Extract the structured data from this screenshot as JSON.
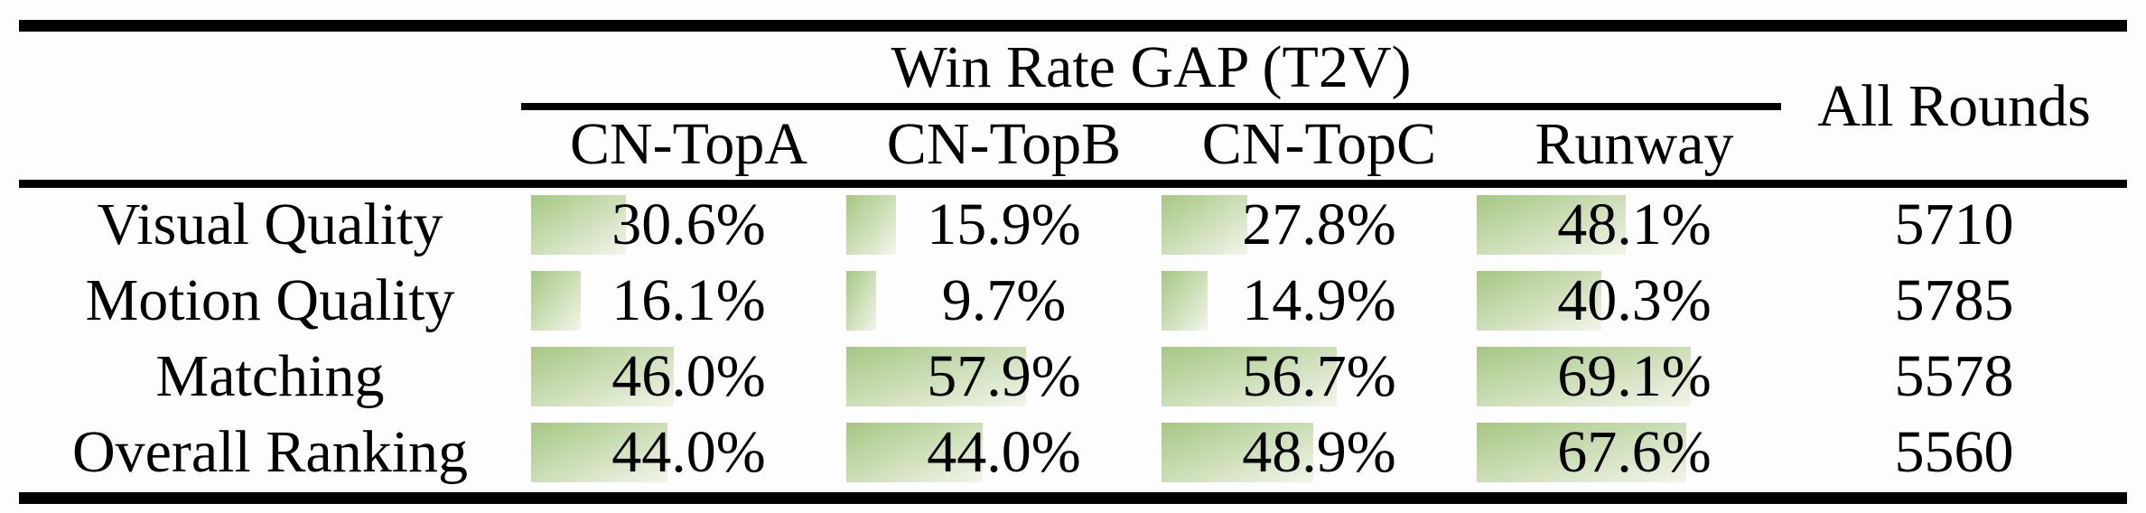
{
  "table": {
    "group_header": "Win Rate GAP (T2V)",
    "all_rounds_header": "All Rounds",
    "columns": [
      "CN-TopA",
      "CN-TopB",
      "CN-TopC",
      "Runway"
    ],
    "rows": [
      {
        "label": "Visual Quality",
        "cells": [
          {
            "text": "30.6%",
            "pct": 30.6
          },
          {
            "text": "15.9%",
            "pct": 15.9
          },
          {
            "text": "27.8%",
            "pct": 27.8
          },
          {
            "text": "48.1%",
            "pct": 48.1
          }
        ],
        "all_rounds": "5710"
      },
      {
        "label": "Motion Quality",
        "cells": [
          {
            "text": "16.1%",
            "pct": 16.1
          },
          {
            "text": "9.7%",
            "pct": 9.7
          },
          {
            "text": "14.9%",
            "pct": 14.9
          },
          {
            "text": "40.3%",
            "pct": 40.3
          }
        ],
        "all_rounds": "5785"
      },
      {
        "label": "Matching",
        "cells": [
          {
            "text": "46.0%",
            "pct": 46.0
          },
          {
            "text": "57.9%",
            "pct": 57.9
          },
          {
            "text": "56.7%",
            "pct": 56.7
          },
          {
            "text": "69.1%",
            "pct": 69.1
          }
        ],
        "all_rounds": "5578"
      },
      {
        "label": "Overall Ranking",
        "cells": [
          {
            "text": "44.0%",
            "pct": 44.0
          },
          {
            "text": "44.0%",
            "pct": 44.0
          },
          {
            "text": "48.9%",
            "pct": 48.9
          },
          {
            "text": "67.6%",
            "pct": 67.6
          }
        ],
        "all_rounds": "5560"
      }
    ]
  },
  "colors": {
    "bar_gradient_start": "#a5c783",
    "bar_gradient_end": "#f2f5ea",
    "rule": "#000000",
    "text": "#000000"
  },
  "chart_data": {
    "type": "table",
    "title": "Win Rate GAP (T2V)",
    "categories": [
      "Visual Quality",
      "Motion Quality",
      "Matching",
      "Overall Ranking"
    ],
    "series": [
      {
        "name": "CN-TopA",
        "values": [
          30.6,
          16.1,
          46.0,
          44.0
        ]
      },
      {
        "name": "CN-TopB",
        "values": [
          15.9,
          9.7,
          57.9,
          44.0
        ]
      },
      {
        "name": "CN-TopC",
        "values": [
          27.8,
          14.9,
          56.7,
          48.9
        ]
      },
      {
        "name": "Runway",
        "values": [
          48.1,
          40.3,
          69.1,
          67.6
        ]
      }
    ],
    "extra_column": {
      "name": "All Rounds",
      "values": [
        5710,
        5785,
        5578,
        5560
      ]
    },
    "unit": "%",
    "bar_style": "green gradient bar, width proportional to percentage, behind centered text"
  }
}
